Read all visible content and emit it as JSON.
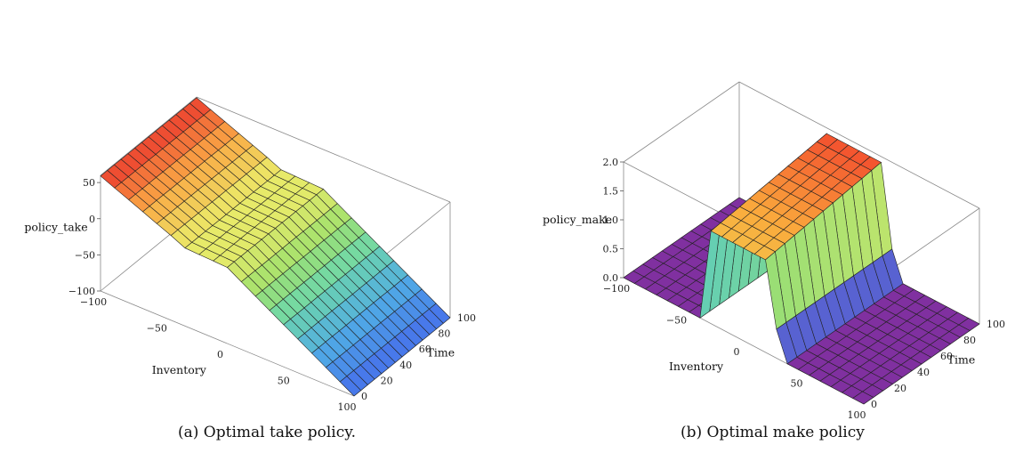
{
  "chart_data": [
    {
      "type": "surface3d",
      "caption": "(a) Optimal take policy.",
      "zlabel": "policy_take",
      "xlabel": "Inventory",
      "ylabel": "Time",
      "z_ticks": [
        "50",
        "0",
        "−50",
        "−100"
      ],
      "x_ticks": [
        "−100",
        "−50",
        "0",
        "50",
        "100"
      ],
      "y_ticks": [
        "0",
        "20",
        "40",
        "60",
        "80",
        "100"
      ],
      "xlim": [
        -100,
        100
      ],
      "ylim": [
        0,
        100
      ],
      "zlim": [
        -100,
        60
      ],
      "surface": "policy_take(inventory) = 59 at inventory -100 falling linearly to about 10 at inventory -35, flat at about 5 between -35 and 0, then falling linearly to about -100 at inventory 100; nearly independent of time",
      "colormap": "rainbow (red high, blue low)"
    },
    {
      "type": "surface3d",
      "caption": "(b) Optimal make policy",
      "zlabel": "policy_make",
      "xlabel": "Inventory",
      "ylabel": "Time",
      "z_ticks": [
        "2.0",
        "1.5",
        "1.0",
        "0.5",
        "0.0"
      ],
      "x_ticks": [
        "−100",
        "−50",
        "0",
        "50",
        "100"
      ],
      "y_ticks": [
        "0",
        "20",
        "40",
        "60",
        "80",
        "100"
      ],
      "xlim": [
        -100,
        100
      ],
      "ylim": [
        0,
        100
      ],
      "zlim": [
        0,
        2
      ],
      "surface": "policy_make is 0 for inventory below about -35 and above about 35; a step of about 0.5 near -35 and 30, and a plateau of about 1.6 to 1.9 between -30 and 20, rising slightly with time",
      "colormap": "rainbow (red high, purple low)"
    }
  ]
}
